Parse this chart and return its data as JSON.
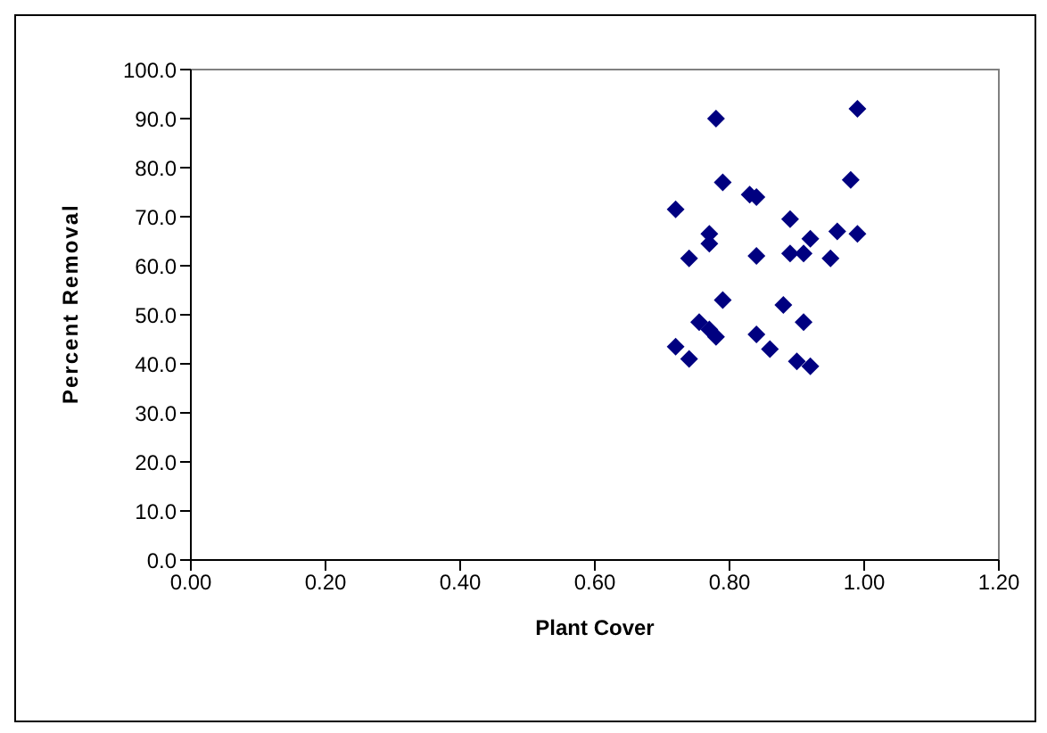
{
  "chart_data": {
    "type": "scatter",
    "xlabel": "Plant Cover",
    "ylabel": "Percent Removal",
    "color": "#000080",
    "marker": "diamond",
    "grid": false,
    "legend": false,
    "x": [
      0.72,
      0.74,
      0.755,
      0.77,
      0.77,
      0.77,
      0.78,
      0.79,
      0.79,
      0.72,
      0.74,
      0.78,
      0.83,
      0.84,
      0.84,
      0.84,
      0.86,
      0.88,
      0.89,
      0.89,
      0.91,
      0.92,
      0.9,
      0.91,
      0.92,
      0.95,
      0.96,
      0.98,
      0.99,
      0.99
    ],
    "values": [
      71.5,
      61.5,
      48.5,
      47,
      66.5,
      64.5,
      90,
      77,
      53,
      43.5,
      41,
      45.5,
      74.5,
      74,
      62,
      46,
      43,
      52,
      69.5,
      62.5,
      62.5,
      65.5,
      40.5,
      48.5,
      39.5,
      61.5,
      67,
      77.5,
      92,
      66.5
    ],
    "xlim": [
      0,
      1.2
    ],
    "xticks": [
      {
        "value": 0,
        "label": "0.00"
      },
      {
        "value": 0.2,
        "label": "0.20"
      },
      {
        "value": 0.4,
        "label": "0.40"
      },
      {
        "value": 0.6,
        "label": "0.60"
      },
      {
        "value": 0.8,
        "label": "0.80"
      },
      {
        "value": 1,
        "label": "1.00"
      },
      {
        "value": 1.2,
        "label": "1.20"
      }
    ],
    "ylim": [
      0,
      100
    ],
    "yticks": [
      {
        "value": 0,
        "label": "0.0"
      },
      {
        "value": 10,
        "label": "10.0"
      },
      {
        "value": 20,
        "label": "20.0"
      },
      {
        "value": 30,
        "label": "30.0"
      },
      {
        "value": 40,
        "label": "40.0"
      },
      {
        "value": 50,
        "label": "50.0"
      },
      {
        "value": 60,
        "label": "60.0"
      },
      {
        "value": 70,
        "label": "70.0"
      },
      {
        "value": 80,
        "label": "80.0"
      },
      {
        "value": 90,
        "label": "90.0"
      },
      {
        "value": 100,
        "label": "100.0"
      }
    ]
  }
}
